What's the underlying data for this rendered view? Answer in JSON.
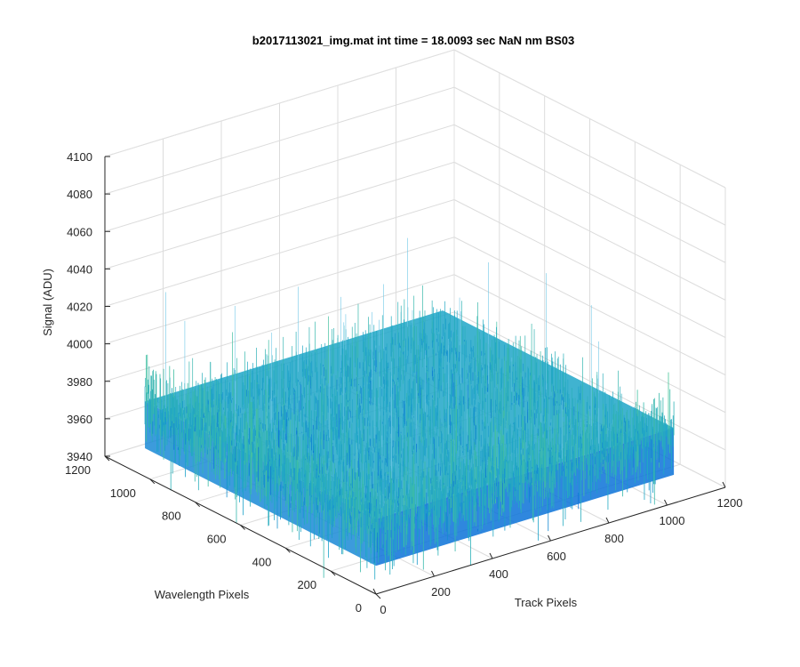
{
  "chart_data": {
    "type": "surface",
    "title": "b2017113021_img.mat int time = 18.0093 sec   NaN nm BS03",
    "xlabel": "Track Pixels",
    "ylabel": "Wavelength Pixels",
    "zlabel": "Signal (ADU)",
    "xlim": [
      0,
      1200
    ],
    "ylim": [
      0,
      1200
    ],
    "zlim": [
      3940,
      4100
    ],
    "xticks": [
      "0",
      "200",
      "400",
      "600",
      "800",
      "1000",
      "1200"
    ],
    "yticks": [
      "0",
      "200",
      "400",
      "600",
      "800",
      "1000",
      "1200"
    ],
    "zticks": [
      "3940",
      "3960",
      "3980",
      "4000",
      "4020",
      "4040",
      "4060",
      "4080",
      "4100"
    ],
    "grid": true,
    "data_extent": {
      "x": [
        1,
        1024
      ],
      "y": [
        1,
        1024
      ]
    },
    "signal_mean": 3980,
    "signal_noise_band": [
      3955,
      4010
    ],
    "spike_max": 4045,
    "colormap": "parula",
    "colors": {
      "low": "#0a72d8",
      "mid": "#1fa6c8",
      "high": "#48c49a"
    }
  }
}
